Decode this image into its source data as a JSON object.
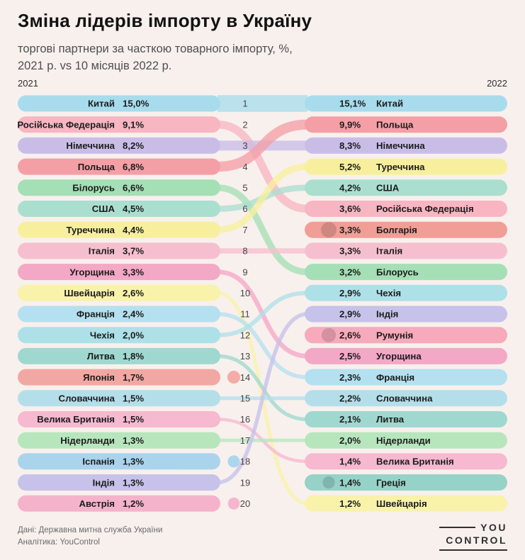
{
  "header": {
    "title": "Зміна лідерів імпорту в Україну",
    "subtitle_line1": "торгові партнери за часткою товарного імпорту, %,",
    "subtitle_line2": "2021 р. vs 10 місяців 2022 р."
  },
  "chart_data": {
    "type": "bump",
    "title": "Зміна лідерів імпорту в Україну",
    "subtitle": "торгові партнери за часткою товарного імпорту, %, 2021 р. vs 10 місяців 2022 р.",
    "left_year": "2021",
    "right_year": "2022",
    "unit": "%",
    "ranks": [
      1,
      2,
      3,
      4,
      5,
      6,
      7,
      8,
      9,
      10,
      11,
      12,
      13,
      14,
      15,
      16,
      17,
      18,
      19,
      20
    ],
    "countries": [
      {
        "name": "Китай",
        "color": "#a8dcec",
        "rank_2021": 1,
        "share_2021": 15.0,
        "share_2021_label": "15,0%",
        "rank_2022": 1,
        "share_2022": 15.1,
        "share_2022_label": "15,1%"
      },
      {
        "name": "Російська Федерація",
        "color": "#f7b6c2",
        "rank_2021": 2,
        "share_2021": 9.1,
        "share_2021_label": "9,1%",
        "rank_2022": 6,
        "share_2022": 3.6,
        "share_2022_label": "3,6%"
      },
      {
        "name": "Німеччина",
        "color": "#c9bde8",
        "rank_2021": 3,
        "share_2021": 8.2,
        "share_2021_label": "8,2%",
        "rank_2022": 3,
        "share_2022": 8.3,
        "share_2022_label": "8,3%"
      },
      {
        "name": "Польща",
        "color": "#f49fa6",
        "rank_2021": 4,
        "share_2021": 6.8,
        "share_2021_label": "6,8%",
        "rank_2022": 2,
        "share_2022": 9.9,
        "share_2022_label": "9,9%"
      },
      {
        "name": "Білорусь",
        "color": "#a5dfb5",
        "rank_2021": 5,
        "share_2021": 6.6,
        "share_2021_label": "6,6%",
        "rank_2022": 9,
        "share_2022": 3.2,
        "share_2022_label": "3,2%"
      },
      {
        "name": "США",
        "color": "#aadfcf",
        "rank_2021": 6,
        "share_2021": 4.5,
        "share_2021_label": "4,5%",
        "rank_2022": 5,
        "share_2022": 4.2,
        "share_2022_label": "4,2%"
      },
      {
        "name": "Туреччина",
        "color": "#f7ef9d",
        "rank_2021": 7,
        "share_2021": 4.4,
        "share_2021_label": "4,4%",
        "rank_2022": 4,
        "share_2022": 5.2,
        "share_2022_label": "5,2%"
      },
      {
        "name": "Італія",
        "color": "#f6bfd0",
        "rank_2021": 8,
        "share_2021": 3.7,
        "share_2021_label": "3,7%",
        "rank_2022": 8,
        "share_2022": 3.3,
        "share_2022_label": "3,3%"
      },
      {
        "name": "Угорщина",
        "color": "#f3a8c6",
        "rank_2021": 9,
        "share_2021": 3.3,
        "share_2021_label": "3,3%",
        "rank_2022": 13,
        "share_2022": 2.5,
        "share_2022_label": "2,5%"
      },
      {
        "name": "Швейцарія",
        "color": "#f8f2ab",
        "rank_2021": 10,
        "share_2021": 2.6,
        "share_2021_label": "2,6%",
        "rank_2022": 20,
        "share_2022": 1.2,
        "share_2022_label": "1,2%"
      },
      {
        "name": "Франція",
        "color": "#b5e0f0",
        "rank_2021": 11,
        "share_2021": 2.4,
        "share_2021_label": "2,4%",
        "rank_2022": 14,
        "share_2022": 2.3,
        "share_2022_label": "2,3%"
      },
      {
        "name": "Чехія",
        "color": "#aee0e8",
        "rank_2021": 12,
        "share_2021": 2.0,
        "share_2021_label": "2,0%",
        "rank_2022": 10,
        "share_2022": 2.9,
        "share_2022_label": "2,9%"
      },
      {
        "name": "Литва",
        "color": "#9fd8cf",
        "rank_2021": 13,
        "share_2021": 1.8,
        "share_2021_label": "1,8%",
        "rank_2022": 16,
        "share_2022": 2.1,
        "share_2022_label": "2,1%"
      },
      {
        "name": "Японія",
        "color": "#f2a8a2",
        "rank_2021": 14,
        "share_2021": 1.7,
        "share_2021_label": "1,7%",
        "rank_2022": null,
        "share_2022": null,
        "share_2022_label": null
      },
      {
        "name": "Словаччина",
        "color": "#b4dfea",
        "rank_2021": 15,
        "share_2021": 1.5,
        "share_2021_label": "1,5%",
        "rank_2022": 15,
        "share_2022": 2.2,
        "share_2022_label": "2,2%"
      },
      {
        "name": "Велика Британія",
        "color": "#f6b9cf",
        "rank_2021": 16,
        "share_2021": 1.5,
        "share_2021_label": "1,5%",
        "rank_2022": 18,
        "share_2022": 1.4,
        "share_2022_label": "1,4%"
      },
      {
        "name": "Нідерланди",
        "color": "#b7e6bd",
        "rank_2021": 17,
        "share_2021": 1.3,
        "share_2021_label": "1,3%",
        "rank_2022": 17,
        "share_2022": 2.0,
        "share_2022_label": "2,0%"
      },
      {
        "name": "Іспанія",
        "color": "#a9d4ec",
        "rank_2021": 18,
        "share_2021": 1.3,
        "share_2021_label": "1,3%",
        "rank_2022": null,
        "share_2022": null,
        "share_2022_label": null
      },
      {
        "name": "Індія",
        "color": "#c6c2ea",
        "rank_2021": 19,
        "share_2021": 1.3,
        "share_2021_label": "1,3%",
        "rank_2022": 11,
        "share_2022": 2.9,
        "share_2022_label": "2,9%"
      },
      {
        "name": "Австрія",
        "color": "#f4b3cb",
        "rank_2021": 20,
        "share_2021": 1.2,
        "share_2021_label": "1,2%",
        "rank_2022": null,
        "share_2022": null,
        "share_2022_label": null
      },
      {
        "name": "Болгарія",
        "color": "#f19e96",
        "rank_2021": null,
        "share_2021": null,
        "share_2021_label": null,
        "rank_2022": 7,
        "share_2022": 3.3,
        "share_2022_label": "3,3%"
      },
      {
        "name": "Румунія",
        "color": "#f6aabb",
        "rank_2021": null,
        "share_2021": null,
        "share_2021_label": null,
        "rank_2022": 12,
        "share_2022": 2.6,
        "share_2022_label": "2,6%"
      },
      {
        "name": "Греція",
        "color": "#96d2c8",
        "rank_2021": null,
        "share_2021": null,
        "share_2021_label": null,
        "rank_2022": 19,
        "share_2022": 1.4,
        "share_2022_label": "1,4%"
      }
    ]
  },
  "footer": {
    "source_line1": "Дані: Державна митна служба України",
    "source_line2": "Аналітика: YouControl",
    "logo_line1": "YOU",
    "logo_line2": "CONTROL"
  },
  "colors": {
    "background": "#f8f0ed",
    "text_dark": "#1c1c1c",
    "text_gray": "#4f4f4f",
    "rank_gray": "#474747"
  }
}
